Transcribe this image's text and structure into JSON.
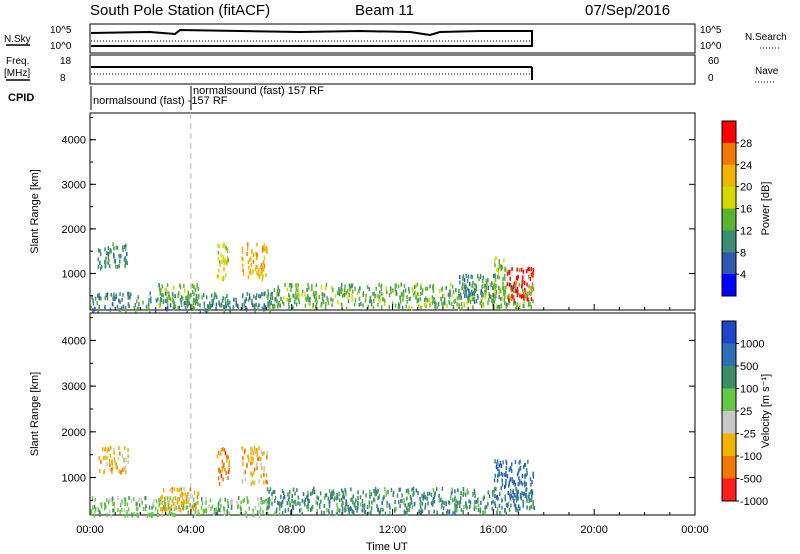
{
  "header": {
    "station": "South Pole Station (fitACF)",
    "beam": "Beam 11",
    "date": "07/Sep/2016"
  },
  "top_panels": {
    "nsky_label": "N.Sky",
    "nsky_ticks": [
      "10^5",
      "10^0"
    ],
    "nsearch_label": "N.Search",
    "nsearch_ticks": [
      "10^5",
      "10^0"
    ],
    "freq_label_line1": "Freq.",
    "freq_label_line2": "[MHz]",
    "freq_ticks": [
      "18",
      "8"
    ],
    "nave_label": "Nave",
    "nave_ticks": [
      "60",
      "0"
    ],
    "cpid_label": "CPID",
    "cpid_entries": [
      {
        "text": "normalsound (fast) -157 RF",
        "start_hour": 0.0
      },
      {
        "text": "normalsound (fast) 157 RF",
        "start_hour": 4.0
      }
    ],
    "data_end_hour": 17.6
  },
  "time_axis": {
    "label": "Time UT",
    "ticks": [
      "00:00",
      "04:00",
      "08:00",
      "12:00",
      "16:00",
      "20:00",
      "00:00"
    ],
    "range_hours": [
      0,
      24
    ]
  },
  "chart_data": [
    {
      "type": "heatmap",
      "name": "power",
      "ylabel": "Slant Range [km]",
      "y_ticks": [
        "1000",
        "2000",
        "3000",
        "4000"
      ],
      "ylim": [
        180,
        4600
      ],
      "xlim": [
        0,
        24
      ],
      "colorbar_label": "Power [dB]",
      "colorbar_ticks": [
        "4",
        "8",
        "12",
        "16",
        "20",
        "24",
        "28"
      ],
      "colorbar_range": [
        0,
        32
      ],
      "colorbar_colors": [
        "#0000ff",
        "#2e5ab0",
        "#3c8c76",
        "#5ab432",
        "#d8d800",
        "#f0b400",
        "#f07800",
        "#ff0000"
      ],
      "patches": [
        {
          "x": [
            0.3,
            1.5
          ],
          "y": [
            1150,
            1700
          ],
          "value": 10
        },
        {
          "x": [
            0.0,
            7.5
          ],
          "y": [
            200,
            600
          ],
          "value": 8
        },
        {
          "x": [
            2.7,
            4.3
          ],
          "y": [
            300,
            800
          ],
          "value": 13
        },
        {
          "x": [
            5.0,
            5.5
          ],
          "y": [
            900,
            1700
          ],
          "value": 18
        },
        {
          "x": [
            6.0,
            7.0
          ],
          "y": [
            900,
            1700
          ],
          "value": 20
        },
        {
          "x": [
            7.0,
            17.6
          ],
          "y": [
            250,
            800
          ],
          "value": 13
        },
        {
          "x": [
            14.6,
            16.0
          ],
          "y": [
            400,
            1000
          ],
          "value": 10
        },
        {
          "x": [
            16.0,
            16.5
          ],
          "y": [
            400,
            1400
          ],
          "value": 14
        },
        {
          "x": [
            16.5,
            17.6
          ],
          "y": [
            400,
            1150
          ],
          "value": 28
        }
      ]
    },
    {
      "type": "heatmap",
      "name": "velocity",
      "ylabel": "Slant Range [km]",
      "y_ticks": [
        "1000",
        "2000",
        "3000",
        "4000"
      ],
      "ylim": [
        180,
        4600
      ],
      "xlim": [
        0,
        24
      ],
      "colorbar_label": "Velocity [m s⁻¹]",
      "colorbar_ticks": [
        "1000",
        "500",
        "100",
        "25",
        "-25",
        "-100",
        "-500",
        "-1000"
      ],
      "colorbar_colors": [
        "#1e46c8",
        "#2e6eb4",
        "#3c8c64",
        "#64c846",
        "#c8c8c8",
        "#f0b400",
        "#f07800",
        "#ff1e1e"
      ],
      "patches": [
        {
          "x": [
            0.3,
            1.5
          ],
          "y": [
            1150,
            1700
          ],
          "value": "-100"
        },
        {
          "x": [
            0.0,
            7.5
          ],
          "y": [
            200,
            600
          ],
          "value": "25"
        },
        {
          "x": [
            2.7,
            4.3
          ],
          "y": [
            300,
            800
          ],
          "value": "-100"
        },
        {
          "x": [
            5.0,
            5.5
          ],
          "y": [
            900,
            1700
          ],
          "value": "-500"
        },
        {
          "x": [
            6.0,
            7.0
          ],
          "y": [
            900,
            1700
          ],
          "value": "-100"
        },
        {
          "x": [
            7.0,
            17.6
          ],
          "y": [
            250,
            800
          ],
          "value": "100"
        },
        {
          "x": [
            16.0,
            17.6
          ],
          "y": [
            500,
            1400
          ],
          "value": "500"
        }
      ]
    }
  ]
}
